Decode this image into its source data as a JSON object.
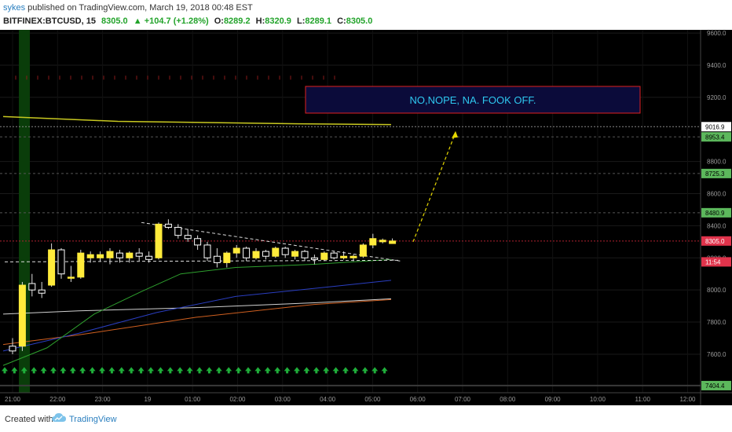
{
  "header": {
    "user": "sykes",
    "published_text": " published on TradingView.com, March 19, 2018 00:48 EST",
    "symbol": "BITFINEX:BTCUSD, 15",
    "last": "8305.0",
    "change": "▲ +104.7 (+1.28%)",
    "o_label": "O:",
    "o_value": "8289.2",
    "h_label": "H:",
    "h_value": "8320.9",
    "l_label": "L:",
    "l_value": "8289.1",
    "c_label": "C:",
    "c_value": "8305.0"
  },
  "footer": {
    "created_with": "Created with",
    "brand": "TradingView"
  },
  "colors": {
    "up": "#ffeb3b",
    "down": "#ffffff",
    "background": "#000000",
    "price_tag": "#e0334b",
    "level_tag": "#5cb85c",
    "annotation_text": "#2ec8f0",
    "annotation_border": "#e02020"
  },
  "annotation_text": "NO,NOPE, NA. FOOK OFF.",
  "chart_data": {
    "type": "candlestick",
    "x_ticks": [
      "21:00",
      "22:00",
      "23:00",
      "19",
      "01:00",
      "02:00",
      "03:00",
      "04:00",
      "05:00",
      "06:00",
      "07:00",
      "08:00",
      "09:00",
      "10:00",
      "11:00",
      "12:00"
    ],
    "y_ticks": [
      7600,
      7800,
      8000,
      8200,
      8400,
      8600,
      8800,
      9200,
      9400,
      9600
    ],
    "ylim": [
      7360,
      9620
    ],
    "level_labels": [
      {
        "value": 9016.9,
        "label": "9016.9",
        "style": "white"
      },
      {
        "value": 8953.4,
        "label": "8953.4",
        "style": "green"
      },
      {
        "value": 8725.3,
        "label": "8725.3",
        "style": "green"
      },
      {
        "value": 8480.9,
        "label": "8480.9",
        "style": "green"
      },
      {
        "value": 8305.0,
        "label": "8305.0",
        "style": "red"
      },
      {
        "value": 8175,
        "label": "11:54",
        "style": "red"
      },
      {
        "value": 7404.4,
        "label": "7404.4",
        "style": "green"
      }
    ],
    "candles": [
      {
        "o": 7650,
        "h": 7700,
        "l": 7600,
        "c": 7620
      },
      {
        "o": 7650,
        "h": 8050,
        "l": 7620,
        "c": 8030
      },
      {
        "o": 8040,
        "h": 8100,
        "l": 7960,
        "c": 8000
      },
      {
        "o": 8000,
        "h": 8050,
        "l": 7950,
        "c": 7980
      },
      {
        "o": 8030,
        "h": 8290,
        "l": 8020,
        "c": 8250
      },
      {
        "o": 8250,
        "h": 8260,
        "l": 8070,
        "c": 8100
      },
      {
        "o": 8080,
        "h": 8150,
        "l": 8050,
        "c": 8080
      },
      {
        "o": 8080,
        "h": 8250,
        "l": 8070,
        "c": 8230
      },
      {
        "o": 8200,
        "h": 8240,
        "l": 8170,
        "c": 8220
      },
      {
        "o": 8200,
        "h": 8240,
        "l": 8180,
        "c": 8220
      },
      {
        "o": 8200,
        "h": 8260,
        "l": 8160,
        "c": 8240
      },
      {
        "o": 8230,
        "h": 8250,
        "l": 8170,
        "c": 8200
      },
      {
        "o": 8200,
        "h": 8240,
        "l": 8170,
        "c": 8230
      },
      {
        "o": 8230,
        "h": 8260,
        "l": 8180,
        "c": 8210
      },
      {
        "o": 8210,
        "h": 8240,
        "l": 8170,
        "c": 8190
      },
      {
        "o": 8200,
        "h": 8420,
        "l": 8190,
        "c": 8410
      },
      {
        "o": 8410,
        "h": 8440,
        "l": 8380,
        "c": 8390
      },
      {
        "o": 8390,
        "h": 8410,
        "l": 8320,
        "c": 8340
      },
      {
        "o": 8340,
        "h": 8380,
        "l": 8300,
        "c": 8320
      },
      {
        "o": 8320,
        "h": 8340,
        "l": 8250,
        "c": 8280
      },
      {
        "o": 8280,
        "h": 8300,
        "l": 8180,
        "c": 8200
      },
      {
        "o": 8210,
        "h": 8260,
        "l": 8140,
        "c": 8170
      },
      {
        "o": 8170,
        "h": 8240,
        "l": 8140,
        "c": 8230
      },
      {
        "o": 8230,
        "h": 8280,
        "l": 8200,
        "c": 8260
      },
      {
        "o": 8260,
        "h": 8270,
        "l": 8180,
        "c": 8200
      },
      {
        "o": 8200,
        "h": 8260,
        "l": 8190,
        "c": 8240
      },
      {
        "o": 8240,
        "h": 8250,
        "l": 8190,
        "c": 8210
      },
      {
        "o": 8210,
        "h": 8270,
        "l": 8200,
        "c": 8260
      },
      {
        "o": 8260,
        "h": 8270,
        "l": 8200,
        "c": 8220
      },
      {
        "o": 8210,
        "h": 8250,
        "l": 8190,
        "c": 8240
      },
      {
        "o": 8240,
        "h": 8250,
        "l": 8180,
        "c": 8200
      },
      {
        "o": 8200,
        "h": 8220,
        "l": 8160,
        "c": 8190
      },
      {
        "o": 8190,
        "h": 8240,
        "l": 8180,
        "c": 8230
      },
      {
        "o": 8230,
        "h": 8240,
        "l": 8190,
        "c": 8200
      },
      {
        "o": 8200,
        "h": 8240,
        "l": 8190,
        "c": 8210
      },
      {
        "o": 8200,
        "h": 8220,
        "l": 8180,
        "c": 8210
      },
      {
        "o": 8210,
        "h": 8290,
        "l": 8200,
        "c": 8280
      },
      {
        "o": 8280,
        "h": 8350,
        "l": 8260,
        "c": 8320
      },
      {
        "o": 8300,
        "h": 8320,
        "l": 8290,
        "c": 8310
      },
      {
        "o": 8289.2,
        "h": 8320.9,
        "l": 8289.1,
        "c": 8305.0
      }
    ]
  }
}
